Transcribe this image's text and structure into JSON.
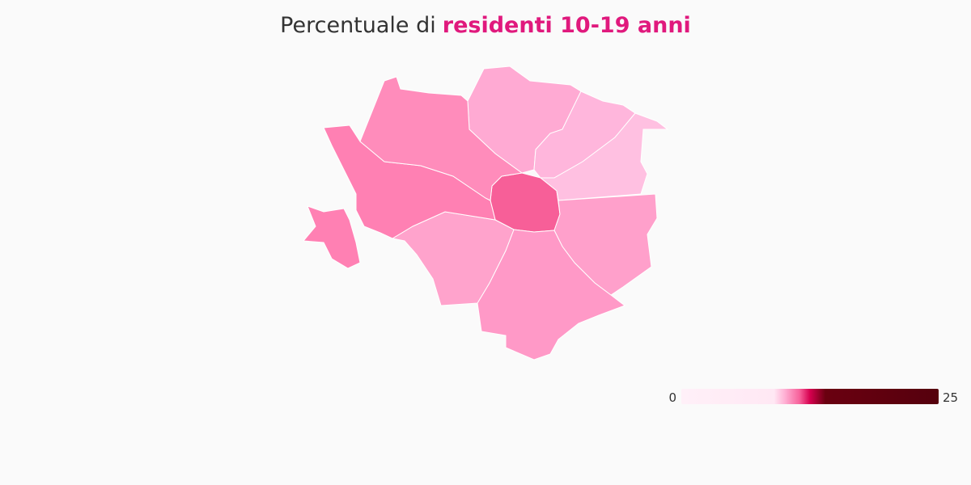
{
  "chart_data": {
    "type": "choropleth",
    "title": "Percentuale di",
    "title_highlight": "residenti 10-19 anni",
    "title_highlight_color": "#e0197d",
    "values": [
      11.3,
      10.2,
      9.9,
      9.6,
      10.3,
      10.5,
      10.4,
      11.0,
      10.8
    ],
    "colors": [
      "#f75f98",
      "#ffaad3",
      "#ffb6dc",
      "#ffc0e1",
      "#ffa0cb",
      "#ff99c7",
      "#ffa3cc",
      "#ff80b3",
      "#ff8cbb"
    ],
    "colorbar": {
      "range": [
        0,
        25
      ],
      "ticks": [
        0,
        25
      ],
      "stops": [
        [
          0,
          "#fff0f8"
        ],
        [
          0.36,
          "#ffe8f4"
        ],
        [
          0.4,
          "#ffb3d6"
        ],
        [
          0.46,
          "#f7609a"
        ],
        [
          0.5,
          "#d6004f"
        ],
        [
          0.56,
          "#6a0010"
        ],
        [
          1,
          "#55000d"
        ]
      ]
    }
  }
}
